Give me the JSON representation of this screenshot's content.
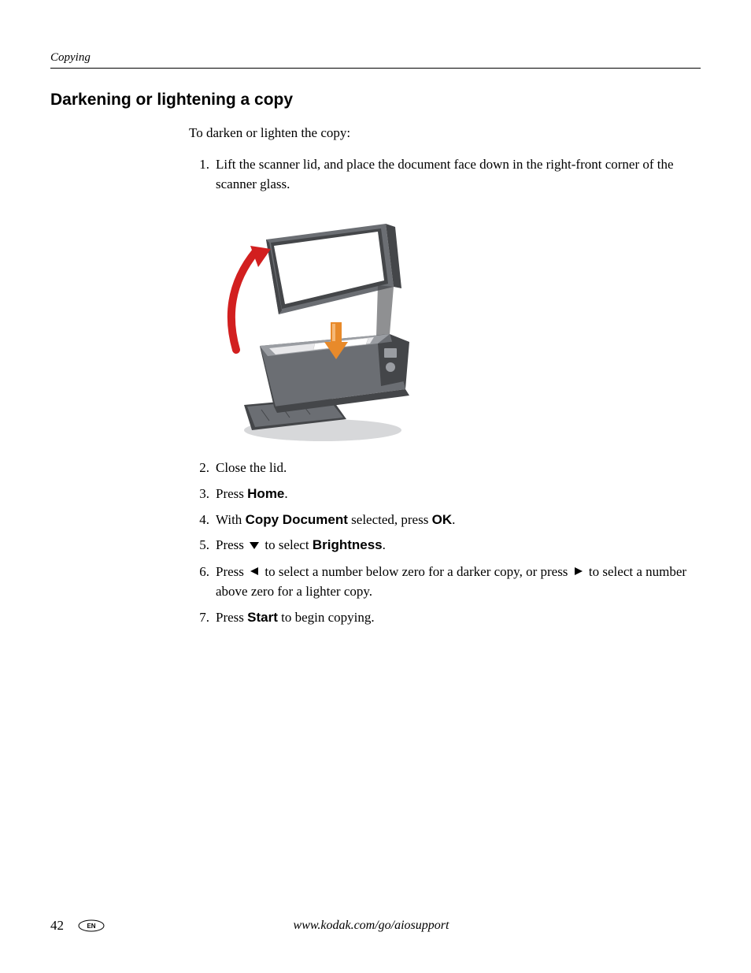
{
  "header": {
    "section_label": "Copying"
  },
  "title": "Darkening or lightening a copy",
  "intro": "To darken or lighten the copy:",
  "steps": [
    {
      "num": "1.",
      "parts": [
        {
          "t": "Lift the scanner lid, and place the document face down in the right-front corner of the scanner glass.",
          "b": false
        }
      ],
      "has_image_after": true
    },
    {
      "num": "2.",
      "parts": [
        {
          "t": "Close the lid.",
          "b": false
        }
      ]
    },
    {
      "num": "3.",
      "parts": [
        {
          "t": "Press ",
          "b": false
        },
        {
          "t": "Home",
          "b": true
        },
        {
          "t": ".",
          "b": false
        }
      ]
    },
    {
      "num": "4.",
      "parts": [
        {
          "t": "With ",
          "b": false
        },
        {
          "t": "Copy Document",
          "b": true
        },
        {
          "t": " selected, press ",
          "b": false
        },
        {
          "t": "OK",
          "b": true
        },
        {
          "t": ".",
          "b": false
        }
      ]
    },
    {
      "num": "5.",
      "parts": [
        {
          "t": "Press ",
          "b": false
        },
        {
          "icon": "down"
        },
        {
          "t": " to select ",
          "b": false
        },
        {
          "t": "Brightness",
          "b": true
        },
        {
          "t": ".",
          "b": false
        }
      ]
    },
    {
      "num": "6.",
      "parts": [
        {
          "t": "Press ",
          "b": false
        },
        {
          "icon": "left"
        },
        {
          "t": " to select a number below zero for a darker copy, or press ",
          "b": false
        },
        {
          "icon": "right"
        },
        {
          "t": " to select a number above zero for a lighter copy.",
          "b": false
        }
      ]
    },
    {
      "num": "7.",
      "parts": [
        {
          "t": "Press ",
          "b": false
        },
        {
          "t": "Start",
          "b": true
        },
        {
          "t": " to begin copying.",
          "b": false
        }
      ]
    }
  ],
  "footer": {
    "page_number": "42",
    "lang": "EN",
    "url": "www.kodak.com/go/aiosupport"
  },
  "icons": {
    "down": "▼",
    "left": "◀",
    "right": "▶"
  },
  "colors": {
    "text": "#000000",
    "background": "#ffffff",
    "rule": "#000000",
    "printer_body": "#6b6e73",
    "printer_dark": "#444649",
    "printer_light": "#9a9da2",
    "scanner_bed": "#e8e8ea",
    "arrow_red": "#d21f1f",
    "arrow_orange": "#e88a2a",
    "shadow": "#d7d8da"
  }
}
